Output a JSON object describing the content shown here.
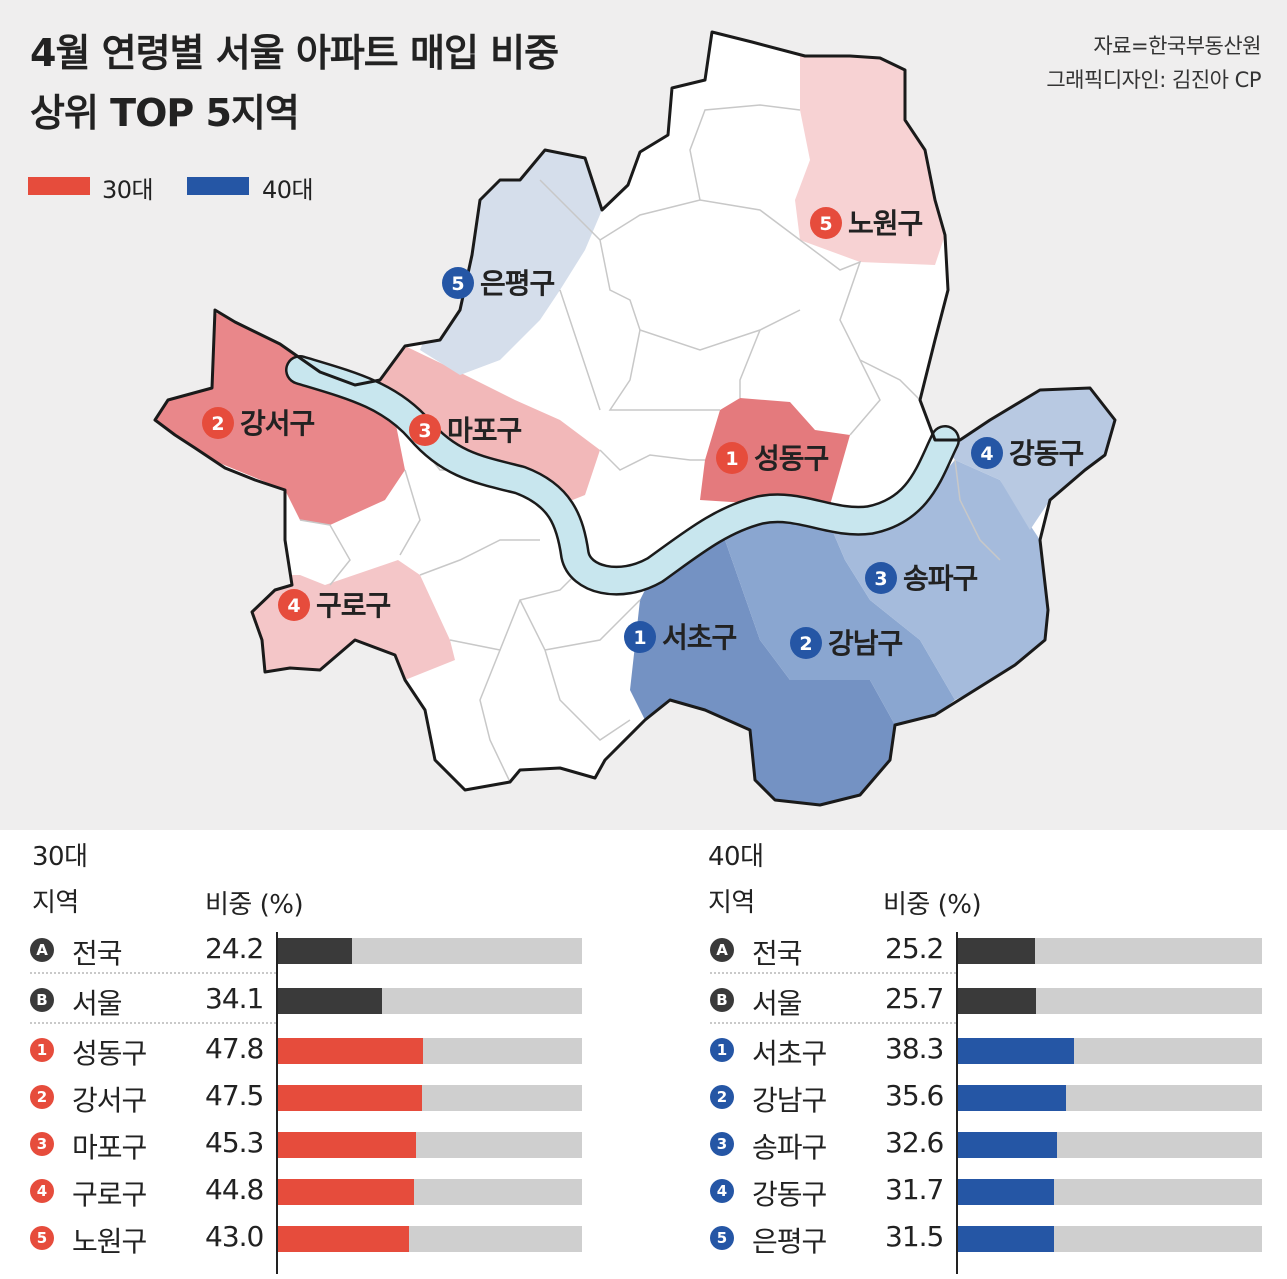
{
  "title": {
    "line1": "4월 연령별 서울 아파트 매입 비중",
    "line2": "상위 TOP 5지역"
  },
  "source": {
    "line1": "자료=한국부동산원",
    "line2": "그래픽디자인: 김진아 CP"
  },
  "legend": [
    {
      "label": "30대",
      "color": "#e64c3c"
    },
    {
      "label": "40대",
      "color": "#2556a5"
    }
  ],
  "map_labels": [
    {
      "rank": "1",
      "name": "성동구",
      "group": "30대"
    },
    {
      "rank": "2",
      "name": "강서구",
      "group": "30대"
    },
    {
      "rank": "3",
      "name": "마포구",
      "group": "30대"
    },
    {
      "rank": "4",
      "name": "구로구",
      "group": "30대"
    },
    {
      "rank": "5",
      "name": "노원구",
      "group": "30대"
    },
    {
      "rank": "1",
      "name": "서초구",
      "group": "40대"
    },
    {
      "rank": "2",
      "name": "강남구",
      "group": "40대"
    },
    {
      "rank": "3",
      "name": "송파구",
      "group": "40대"
    },
    {
      "rank": "4",
      "name": "강동구",
      "group": "40대"
    },
    {
      "rank": "5",
      "name": "은평구",
      "group": "40대"
    }
  ],
  "chart_data": [
    {
      "type": "bar",
      "title": "30대",
      "xlabel": "비중 (%)",
      "ylabel": "지역",
      "xlim": [
        0,
        100
      ],
      "bar_color": "#e64c3c",
      "reference_color": "#3a3a3a",
      "rows": [
        {
          "badge": "A",
          "region": "전국",
          "value": 24.2,
          "value_label": "24.2",
          "reference": true
        },
        {
          "badge": "B",
          "region": "서울",
          "value": 34.1,
          "value_label": "34.1",
          "reference": true
        },
        {
          "badge": "1",
          "region": "성동구",
          "value": 47.8,
          "value_label": "47.8"
        },
        {
          "badge": "2",
          "region": "강서구",
          "value": 47.5,
          "value_label": "47.5"
        },
        {
          "badge": "3",
          "region": "마포구",
          "value": 45.3,
          "value_label": "45.3"
        },
        {
          "badge": "4",
          "region": "구로구",
          "value": 44.8,
          "value_label": "44.8"
        },
        {
          "badge": "5",
          "region": "노원구",
          "value": 43.0,
          "value_label": "43.0"
        }
      ]
    },
    {
      "type": "bar",
      "title": "40대",
      "xlabel": "비중 (%)",
      "ylabel": "지역",
      "xlim": [
        0,
        100
      ],
      "bar_color": "#2556a5",
      "reference_color": "#3a3a3a",
      "rows": [
        {
          "badge": "A",
          "region": "전국",
          "value": 25.2,
          "value_label": "25.2",
          "reference": true
        },
        {
          "badge": "B",
          "region": "서울",
          "value": 25.7,
          "value_label": "25.7",
          "reference": true
        },
        {
          "badge": "1",
          "region": "서초구",
          "value": 38.3,
          "value_label": "38.3"
        },
        {
          "badge": "2",
          "region": "강남구",
          "value": 35.6,
          "value_label": "35.6"
        },
        {
          "badge": "3",
          "region": "송파구",
          "value": 32.6,
          "value_label": "32.6"
        },
        {
          "badge": "4",
          "region": "강동구",
          "value": 31.7,
          "value_label": "31.7"
        },
        {
          "badge": "5",
          "region": "은평구",
          "value": 31.5,
          "value_label": "31.5"
        }
      ]
    }
  ]
}
